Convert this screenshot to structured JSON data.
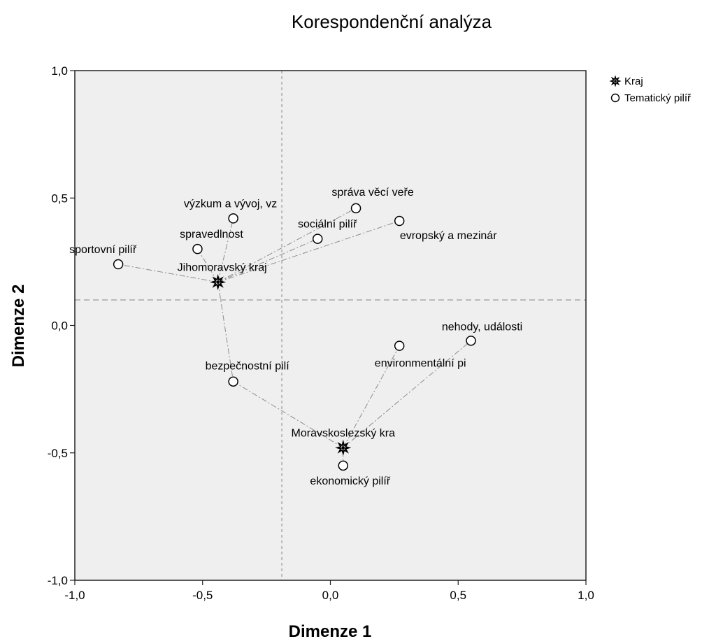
{
  "chart_data": {
    "type": "scatter",
    "title": "Korespondenční analýza",
    "xlabel": "Dimenze 1",
    "ylabel": "Dimenze 2",
    "xlim": [
      -1.0,
      1.0
    ],
    "ylim": [
      -1.0,
      1.0
    ],
    "xticks": [
      "-1,0",
      "-0,5",
      "0,0",
      "0,5",
      "1,0"
    ],
    "yticks": [
      "1,0",
      "0,5",
      "0,0",
      "-0,5",
      "-1,0"
    ],
    "xtick_values": [
      -1.0,
      -0.5,
      0.0,
      0.5,
      1.0
    ],
    "ytick_values": [
      1.0,
      0.5,
      0.0,
      -0.5,
      -1.0
    ],
    "reference_lines": {
      "x": -0.19,
      "y": 0.1
    },
    "legend": {
      "position": "top-right",
      "entries": [
        {
          "label": "Kraj",
          "marker": "star"
        },
        {
          "label": "Tematický pilíř",
          "marker": "circle"
        }
      ]
    },
    "series": [
      {
        "name": "Kraj",
        "marker": "star",
        "points": [
          {
            "label": "Jihomoravský kraj",
            "x": -0.44,
            "y": 0.17
          },
          {
            "label": "Moravskoslezský kra",
            "x": 0.05,
            "y": -0.48
          }
        ]
      },
      {
        "name": "Tematický pilíř",
        "marker": "circle",
        "points": [
          {
            "label": "výzkum a vývoj, vz",
            "x": -0.38,
            "y": 0.42,
            "group": 0
          },
          {
            "label": "spravedlnost",
            "x": -0.52,
            "y": 0.3,
            "group": 0
          },
          {
            "label": "sportovní pilíř",
            "x": -0.83,
            "y": 0.24,
            "group": 0
          },
          {
            "label": "správa věcí veře",
            "x": 0.1,
            "y": 0.46,
            "group": 0
          },
          {
            "label": "sociální pilíř",
            "x": -0.05,
            "y": 0.34,
            "group": 0
          },
          {
            "label": "evropský a mezinár",
            "x": 0.27,
            "y": 0.41,
            "group": 0
          },
          {
            "label": "bezpečnostní pilí",
            "x": -0.38,
            "y": -0.22,
            "group": 1
          },
          {
            "label": "environmentální pi",
            "x": 0.27,
            "y": -0.08,
            "group": 1
          },
          {
            "label": "nehody, události",
            "x": 0.55,
            "y": -0.06,
            "group": 1
          },
          {
            "label": "ekonomický pilíř",
            "x": 0.05,
            "y": -0.55,
            "group": 1
          }
        ]
      }
    ],
    "connections": [
      {
        "from": "Jihomoravský kraj",
        "to": "výzkum a vývoj, vz"
      },
      {
        "from": "Jihomoravský kraj",
        "to": "spravedlnost"
      },
      {
        "from": "Jihomoravský kraj",
        "to": "sportovní pilíř"
      },
      {
        "from": "Jihomoravský kraj",
        "to": "správa věcí veře"
      },
      {
        "from": "Jihomoravský kraj",
        "to": "sociální pilíř"
      },
      {
        "from": "Jihomoravský kraj",
        "to": "evropský a mezinár"
      },
      {
        "from": "Jihomoravský kraj",
        "to": "bezpečnostní pilí"
      },
      {
        "from": "Moravskoslezský kra",
        "to": "bezpečnostní pilí"
      },
      {
        "from": "Moravskoslezský kra",
        "to": "environmentální pi"
      },
      {
        "from": "Moravskoslezský kra",
        "to": "nehody, události"
      },
      {
        "from": "Moravskoslezský kra",
        "to": "ekonomický pilíř"
      }
    ],
    "colors": {
      "plot_background": "#efefef",
      "reference_line": "#a8a8a8",
      "connector": "#8c8c8c",
      "marker_stroke": "#000000",
      "marker_fill": "#ffffff"
    }
  }
}
